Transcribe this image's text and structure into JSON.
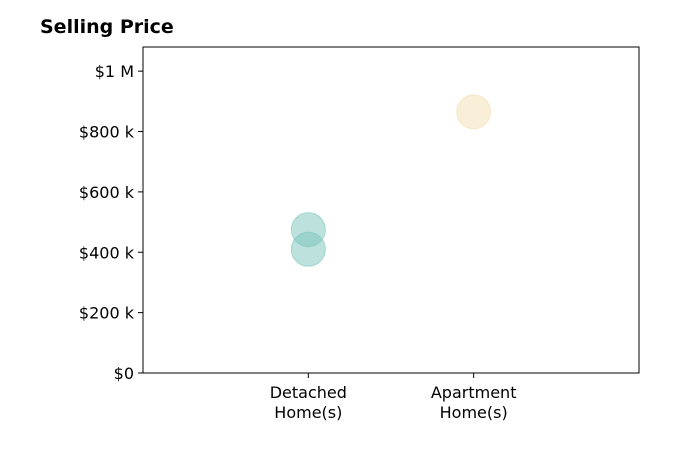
{
  "chart_data": {
    "type": "scatter",
    "title": "Selling Price",
    "xlabel": "",
    "ylabel": "",
    "categories": [
      "Detached\nHome(s)",
      "Apartment\nHome(s)"
    ],
    "ylim": [
      0,
      1000000
    ],
    "y_ticks": [
      {
        "value": 0,
        "label": "$0"
      },
      {
        "value": 200000,
        "label": "$200 k"
      },
      {
        "value": 400000,
        "label": "$400 k"
      },
      {
        "value": 600000,
        "label": "$600 k"
      },
      {
        "value": 800000,
        "label": "$800 k"
      },
      {
        "value": 1000000,
        "label": "$1 M"
      }
    ],
    "points": [
      {
        "category_index": 0,
        "value": 475000,
        "color": "#7cc4bb"
      },
      {
        "category_index": 0,
        "value": 410000,
        "color": "#7cc4bb"
      },
      {
        "category_index": 1,
        "value": 865000,
        "color": "#f3deb2"
      }
    ],
    "grid": false,
    "legend": "none"
  }
}
